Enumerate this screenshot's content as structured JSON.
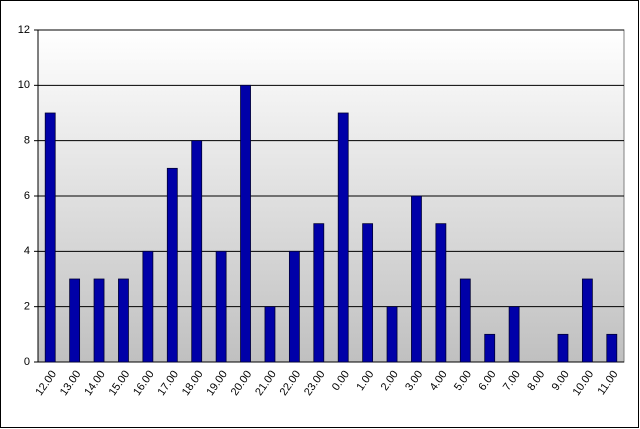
{
  "chart_data": {
    "type": "bar",
    "categories": [
      "12.00",
      "13.00",
      "14.00",
      "15.00",
      "16.00",
      "17.00",
      "18.00",
      "19.00",
      "20.00",
      "21.00",
      "22.00",
      "23.00",
      "0.00",
      "1.00",
      "2.00",
      "3.00",
      "4.00",
      "5.00",
      "6.00",
      "7.00",
      "8.00",
      "9.00",
      "10.00",
      "11.00"
    ],
    "values": [
      9,
      3,
      3,
      3,
      4,
      7,
      8,
      4,
      10,
      2,
      4,
      5,
      9,
      5,
      2,
      6,
      5,
      3,
      1,
      2,
      0,
      1,
      3,
      1
    ],
    "color": "#0000a8",
    "ylim": [
      0,
      12
    ],
    "yticks": [
      0,
      2,
      4,
      6,
      8,
      10,
      12
    ],
    "grid": true
  }
}
